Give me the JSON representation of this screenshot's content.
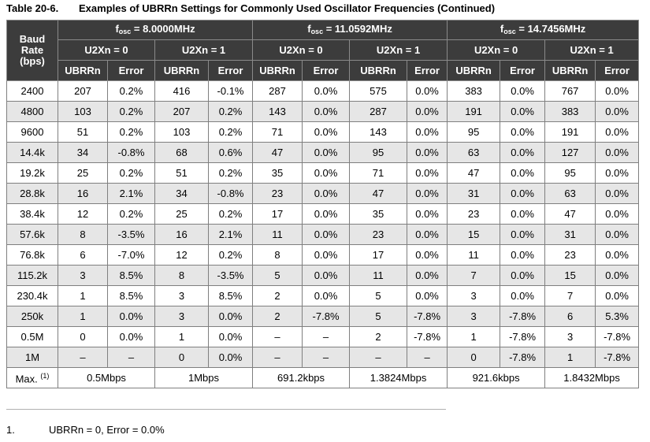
{
  "caption": {
    "number": "Table 20-6.",
    "title": "Examples of UBRRn Settings for Commonly Used Oscillator Frequencies (Continued)"
  },
  "header": {
    "baud_label_lines": [
      "Baud",
      "Rate",
      "(bps)"
    ],
    "fosc_prefix": "f",
    "fosc_sub": "osc",
    "frequencies": [
      " = 8.0000MHz",
      " = 11.0592MHz",
      " = 14.7456MHz"
    ],
    "u2x_labels": [
      "U2Xn = 0",
      "U2Xn = 1",
      "U2Xn = 0",
      "U2Xn = 1",
      "U2Xn = 0",
      "U2Xn = 1"
    ],
    "col_ubrr": "UBRRn",
    "col_error": "Error"
  },
  "rows": [
    {
      "baud": "2400",
      "cells": [
        "207",
        "0.2%",
        "416",
        "-0.1%",
        "287",
        "0.0%",
        "575",
        "0.0%",
        "383",
        "0.0%",
        "767",
        "0.0%"
      ]
    },
    {
      "baud": "4800",
      "cells": [
        "103",
        "0.2%",
        "207",
        "0.2%",
        "143",
        "0.0%",
        "287",
        "0.0%",
        "191",
        "0.0%",
        "383",
        "0.0%"
      ]
    },
    {
      "baud": "9600",
      "cells": [
        "51",
        "0.2%",
        "103",
        "0.2%",
        "71",
        "0.0%",
        "143",
        "0.0%",
        "95",
        "0.0%",
        "191",
        "0.0%"
      ]
    },
    {
      "baud": "14.4k",
      "cells": [
        "34",
        "-0.8%",
        "68",
        "0.6%",
        "47",
        "0.0%",
        "95",
        "0.0%",
        "63",
        "0.0%",
        "127",
        "0.0%"
      ]
    },
    {
      "baud": "19.2k",
      "cells": [
        "25",
        "0.2%",
        "51",
        "0.2%",
        "35",
        "0.0%",
        "71",
        "0.0%",
        "47",
        "0.0%",
        "95",
        "0.0%"
      ]
    },
    {
      "baud": "28.8k",
      "cells": [
        "16",
        "2.1%",
        "34",
        "-0.8%",
        "23",
        "0.0%",
        "47",
        "0.0%",
        "31",
        "0.0%",
        "63",
        "0.0%"
      ]
    },
    {
      "baud": "38.4k",
      "cells": [
        "12",
        "0.2%",
        "25",
        "0.2%",
        "17",
        "0.0%",
        "35",
        "0.0%",
        "23",
        "0.0%",
        "47",
        "0.0%"
      ]
    },
    {
      "baud": "57.6k",
      "cells": [
        "8",
        "-3.5%",
        "16",
        "2.1%",
        "11",
        "0.0%",
        "23",
        "0.0%",
        "15",
        "0.0%",
        "31",
        "0.0%"
      ]
    },
    {
      "baud": "76.8k",
      "cells": [
        "6",
        "-7.0%",
        "12",
        "0.2%",
        "8",
        "0.0%",
        "17",
        "0.0%",
        "11",
        "0.0%",
        "23",
        "0.0%"
      ]
    },
    {
      "baud": "115.2k",
      "cells": [
        "3",
        "8.5%",
        "8",
        "-3.5%",
        "5",
        "0.0%",
        "11",
        "0.0%",
        "7",
        "0.0%",
        "15",
        "0.0%"
      ]
    },
    {
      "baud": "230.4k",
      "cells": [
        "1",
        "8.5%",
        "3",
        "8.5%",
        "2",
        "0.0%",
        "5",
        "0.0%",
        "3",
        "0.0%",
        "7",
        "0.0%"
      ]
    },
    {
      "baud": "250k",
      "cells": [
        "1",
        "0.0%",
        "3",
        "0.0%",
        "2",
        "-7.8%",
        "5",
        "-7.8%",
        "3",
        "-7.8%",
        "6",
        "5.3%"
      ]
    },
    {
      "baud": "0.5M",
      "cells": [
        "0",
        "0.0%",
        "1",
        "0.0%",
        "–",
        "–",
        "2",
        "-7.8%",
        "1",
        "-7.8%",
        "3",
        "-7.8%"
      ]
    },
    {
      "baud": "1M",
      "cells": [
        "–",
        "–",
        "0",
        "0.0%",
        "–",
        "–",
        "–",
        "–",
        "0",
        "-7.8%",
        "1",
        "-7.8%"
      ]
    }
  ],
  "max_row": {
    "label": "Max. ",
    "note_ref": "(1)",
    "values": [
      "0.5Mbps",
      "1Mbps",
      "691.2kbps",
      "1.3824Mbps",
      "921.6kbps",
      "1.8432Mbps"
    ]
  },
  "footnote": {
    "number": "1.",
    "text": "UBRRn = 0, Error = 0.0%"
  }
}
